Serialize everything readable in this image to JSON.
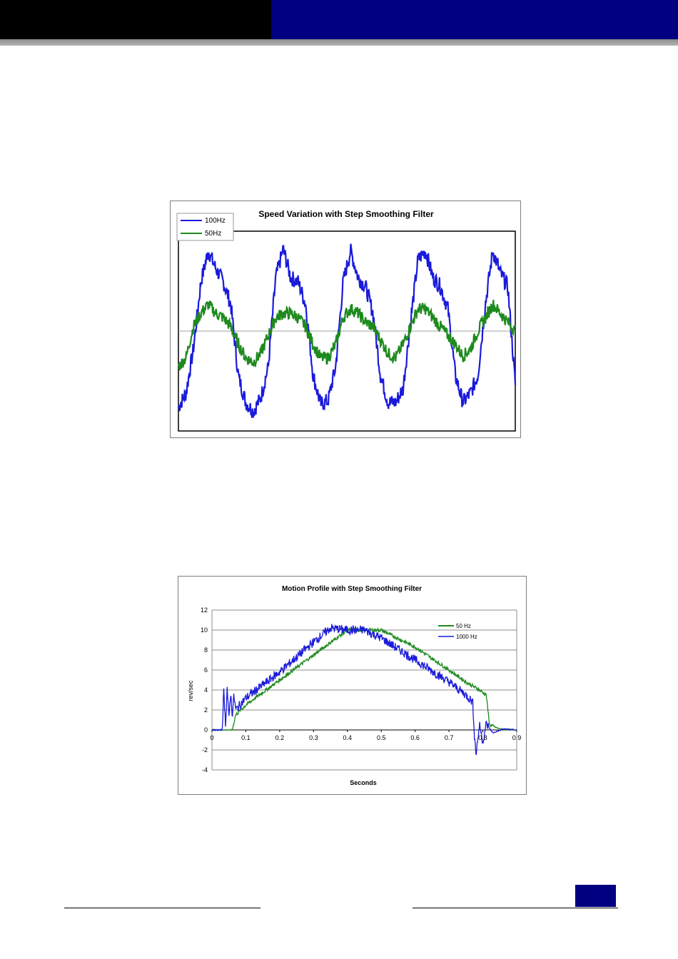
{
  "colors": {
    "header_left": "#000000",
    "header_right": "#000080",
    "blue_series": "#1a1adb",
    "green_series": "#1e8a1e",
    "page_box": "#000080"
  },
  "chart_data": [
    {
      "type": "line",
      "title": "Speed Variation with Step Smoothing Filter",
      "xlabel": "",
      "ylabel": "",
      "grid": false,
      "legend_position": "top-left",
      "series": [
        {
          "name": "100Hz",
          "color": "#1a1adb",
          "y": [
            -0.85,
            -0.7,
            -0.2,
            0.55,
            0.9,
            0.7,
            0.55,
            0.3,
            -0.5,
            -0.8,
            -0.9,
            -0.75,
            -0.4,
            0.6,
            0.92,
            0.6,
            0.55,
            0.3,
            -0.5,
            -0.82,
            -0.78,
            -0.4,
            0.55,
            0.9,
            0.6,
            0.5,
            0.2,
            -0.5,
            -0.8,
            -0.8,
            -0.65,
            0.1,
            0.8,
            0.9,
            0.6,
            0.5,
            0.25,
            -0.5,
            -0.8,
            -0.7,
            -0.5,
            0.3,
            0.9,
            0.65,
            0.5,
            -0.6
          ]
        },
        {
          "name": "50Hz",
          "color": "#1e8a1e",
          "y": [
            -0.4,
            -0.3,
            0.05,
            0.2,
            0.3,
            0.2,
            0.15,
            0.05,
            -0.15,
            -0.3,
            -0.35,
            -0.25,
            -0.05,
            0.15,
            0.2,
            0.2,
            0.15,
            0.05,
            -0.15,
            -0.3,
            -0.3,
            -0.15,
            0.15,
            0.25,
            0.2,
            0.1,
            0.05,
            -0.1,
            -0.25,
            -0.3,
            -0.15,
            0.05,
            0.25,
            0.25,
            0.15,
            0.05,
            -0.05,
            -0.15,
            -0.28,
            -0.2,
            0.0,
            0.15,
            0.3,
            0.2,
            0.1,
            0.0
          ]
        }
      ]
    },
    {
      "type": "line",
      "title": "Motion Profile with Step Smoothing Filter",
      "xlabel": "Seconds",
      "ylabel": "rev/sec",
      "xlim": [
        0,
        0.9
      ],
      "ylim": [
        -4,
        12
      ],
      "xticks": [
        "0",
        "0.1",
        "0.2",
        "0.3",
        "0.4",
        "0.5",
        "0.6",
        "0.7",
        "0.8",
        "0.9"
      ],
      "yticks": [
        "-4",
        "-2",
        "0",
        "2",
        "4",
        "6",
        "8",
        "10",
        "12"
      ],
      "grid": true,
      "legend_position": "top-right",
      "series": [
        {
          "name": "50 Hz",
          "color": "#1e8a1e",
          "x": [
            0,
            0.06,
            0.07,
            0.1,
            0.2,
            0.3,
            0.4,
            0.5,
            0.6,
            0.7,
            0.75,
            0.79,
            0.81,
            0.82,
            0.85,
            0.9
          ],
          "y": [
            0,
            0,
            1.5,
            2.5,
            5.0,
            7.5,
            10.0,
            10.0,
            8.3,
            6.0,
            4.8,
            4.0,
            3.5,
            0.5,
            0.1,
            0
          ]
        },
        {
          "name": "1000 Hz",
          "color": "#1a1adb",
          "x": [
            0,
            0.03,
            0.035,
            0.04,
            0.045,
            0.05,
            0.055,
            0.06,
            0.065,
            0.07,
            0.1,
            0.2,
            0.3,
            0.35,
            0.4,
            0.45,
            0.5,
            0.6,
            0.7,
            0.75,
            0.77,
            0.775,
            0.78,
            0.79,
            0.8,
            0.81,
            0.83,
            0.86,
            0.9
          ],
          "y": [
            0,
            0,
            4,
            0.5,
            4.2,
            1,
            3.8,
            1.5,
            3.5,
            2.0,
            3.2,
            5.8,
            8.8,
            10.2,
            10.0,
            10.0,
            9.2,
            7.0,
            4.8,
            3.5,
            2.8,
            -0.5,
            -2.4,
            0.5,
            -1.2,
            0.6,
            -0.3,
            0.1,
            0
          ]
        }
      ]
    }
  ]
}
